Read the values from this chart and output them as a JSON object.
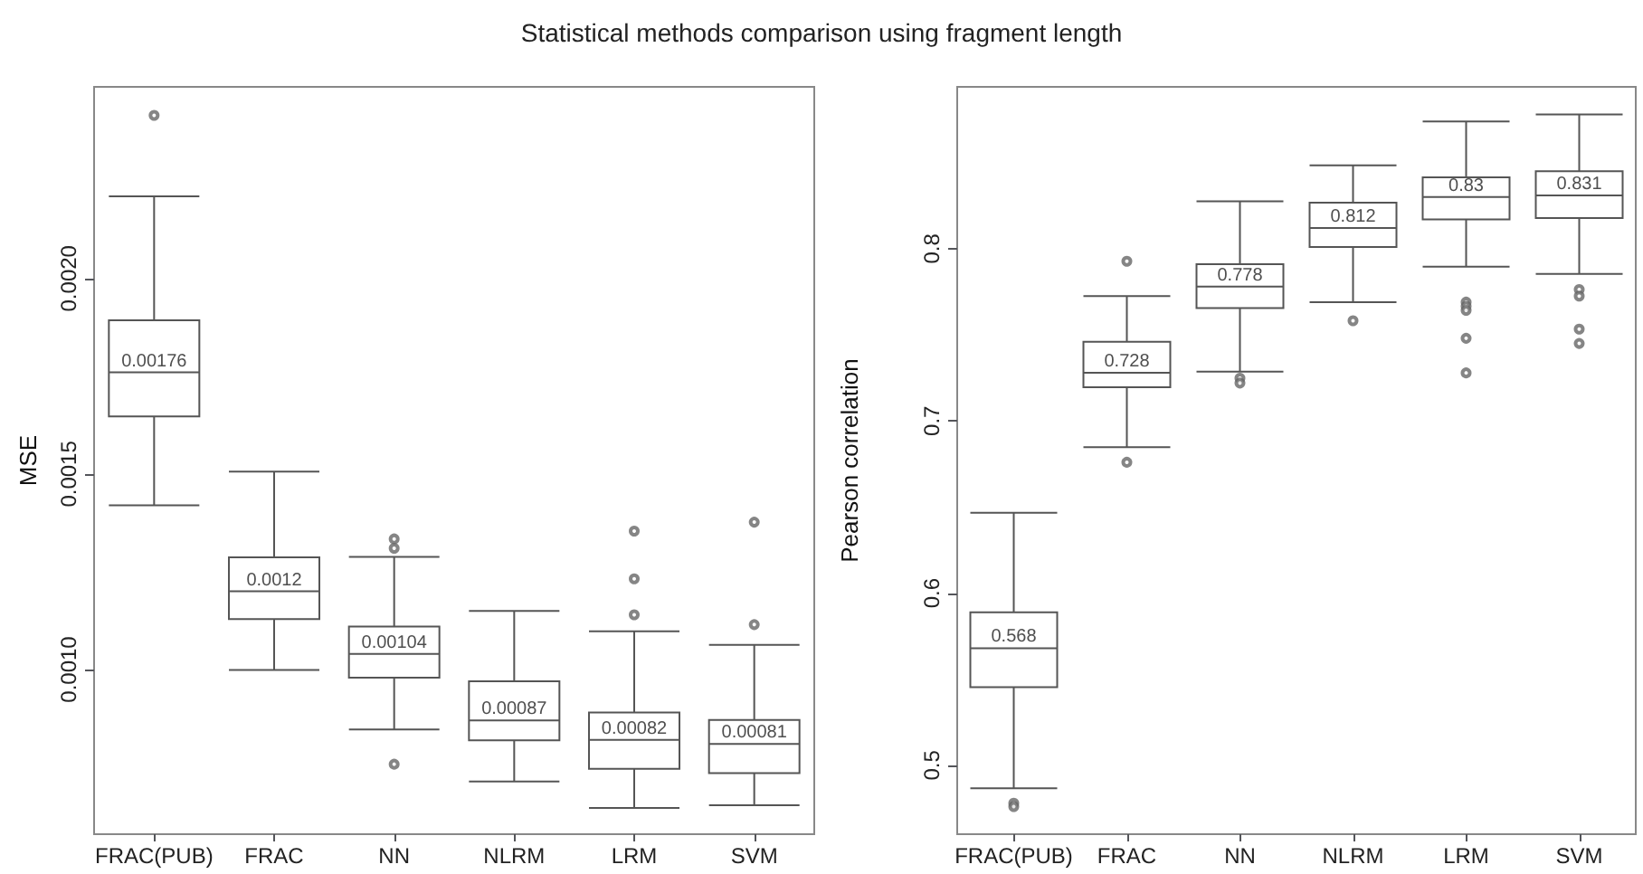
{
  "chart_data": [
    {
      "type": "box",
      "title": "Statistical methods comparison using fragment length",
      "ylabel": "MSE",
      "categories": [
        "FRAC(PUB)",
        "FRAC",
        "NN",
        "NLRM",
        "LRM",
        "SVM"
      ],
      "ylim": [
        0.000579,
        0.00249
      ],
      "yticks": [
        {
          "value": 0.001,
          "label": "0.0010"
        },
        0.0015,
        {
          "value": 0.002,
          "label": "0.0020"
        }
      ],
      "value_labels": [
        "0.00176",
        "0.0012",
        "0.00104",
        "0.00087",
        "0.00082",
        "0.00081"
      ],
      "grid": false,
      "boxes": [
        {
          "low": 0.00142,
          "q1": 0.001647,
          "median": 0.00176,
          "q3": 0.001893,
          "high": 0.00221,
          "outliers": [
            0.002417
          ]
        },
        {
          "low": 0.000999,
          "q1": 0.001129,
          "median": 0.0012,
          "q3": 0.001287,
          "high": 0.001506
        },
        {
          "low": 0.000847,
          "q1": 0.000979,
          "median": 0.00104,
          "q3": 0.00111,
          "high": 0.001288,
          "outliers": [
            0.001334,
            0.00131,
            0.000758
          ]
        },
        {
          "low": 0.000714,
          "q1": 0.000819,
          "median": 0.00087,
          "q3": 0.00097,
          "high": 0.00115
        },
        {
          "low": 0.000646,
          "q1": 0.000746,
          "median": 0.00082,
          "q3": 0.00089,
          "high": 0.001098,
          "outliers": [
            0.001354,
            0.001232,
            0.00114
          ]
        },
        {
          "low": 0.000653,
          "q1": 0.000735,
          "median": 0.00081,
          "q3": 0.000871,
          "high": 0.001063,
          "outliers": [
            0.001377,
            0.001115
          ]
        }
      ]
    },
    {
      "type": "box",
      "ylabel": "Pearson correlation",
      "categories": [
        "FRAC(PUB)",
        "FRAC",
        "NN",
        "NLRM",
        "LRM",
        "SVM"
      ],
      "ylim": [
        0.46,
        0.894
      ],
      "yticks": [
        0.5,
        0.6,
        0.7,
        0.8
      ],
      "value_labels": [
        "0.568",
        "0.728",
        "0.778",
        "0.812",
        "0.83",
        "0.831"
      ],
      "grid": false,
      "boxes": [
        {
          "low": 0.4867,
          "q1": 0.5454,
          "median": 0.568,
          "q3": 0.5889,
          "high": 0.6467,
          "outliers": [
            0.478,
            0.476
          ]
        },
        {
          "low": 0.6847,
          "q1": 0.7195,
          "median": 0.728,
          "q3": 0.746,
          "high": 0.7725,
          "outliers": [
            0.7927,
            0.676
          ]
        },
        {
          "low": 0.7286,
          "q1": 0.7655,
          "median": 0.778,
          "q3": 0.791,
          "high": 0.8275,
          "outliers": [
            0.7248,
            0.722
          ]
        },
        {
          "low": 0.769,
          "q1": 0.801,
          "median": 0.812,
          "q3": 0.8268,
          "high": 0.8484,
          "outliers": [
            0.7582
          ]
        },
        {
          "low": 0.7896,
          "q1": 0.817,
          "median": 0.83,
          "q3": 0.8415,
          "high": 0.8739,
          "outliers": [
            0.769,
            0.7666,
            0.7642,
            0.748,
            0.7279
          ]
        },
        {
          "low": 0.7854,
          "q1": 0.8178,
          "median": 0.831,
          "q3": 0.845,
          "high": 0.878,
          "outliers": [
            0.7763,
            0.7725,
            0.7533,
            0.745
          ]
        }
      ]
    }
  ]
}
